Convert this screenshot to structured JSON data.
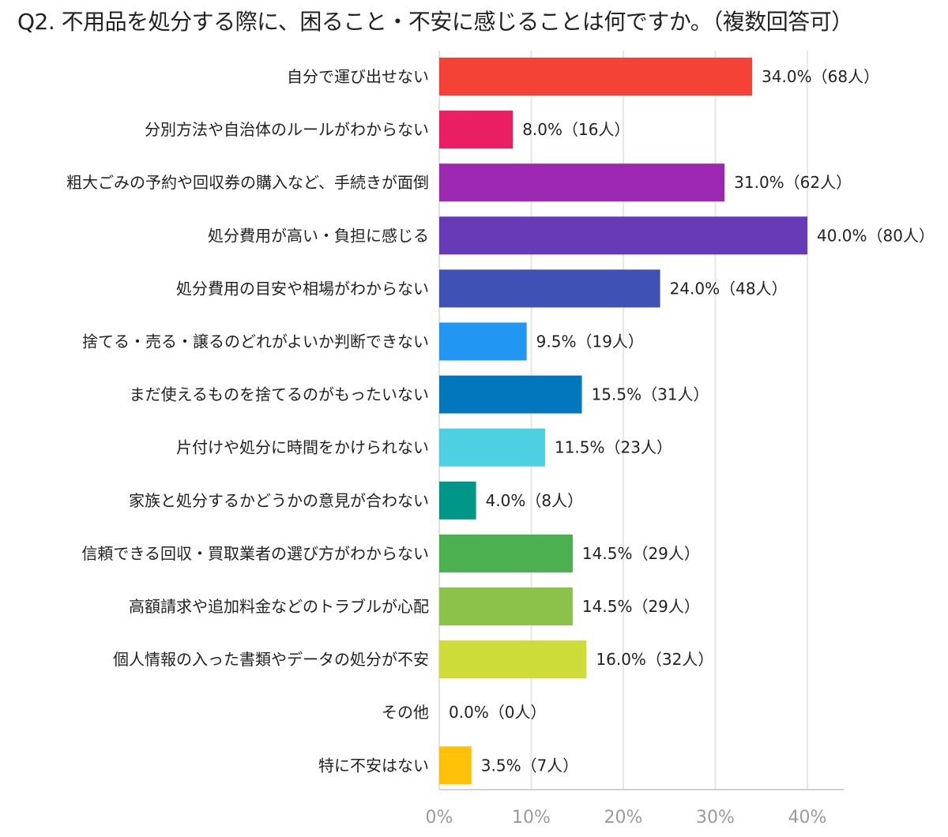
{
  "chart_data": {
    "type": "bar",
    "orientation": "horizontal",
    "title": "Q2. 不用品を処分する際に、困ること・不安に感じることは何ですか。（複数回答可）",
    "xlabel": "",
    "ylabel": "",
    "xlim": [
      0,
      44
    ],
    "ticks": [
      0,
      10,
      20,
      30,
      40
    ],
    "tick_labels": [
      "0%",
      "10%",
      "20%",
      "30%",
      "40%"
    ],
    "grid": true,
    "legend": "none",
    "categories": [
      "自分で運び出せない",
      "分別方法や自治体のルールがわからない",
      "粗大ごみの予約や回収券の購入など、手続きが面倒",
      "処分費用が高い・負担に感じる",
      "処分費用の目安や相場がわからない",
      "捨てる・売る・譲るのどれがよいか判断できない",
      "まだ使えるものを捨てるのがもったいない",
      "片付けや処分に時間をかけられない",
      "家族と処分するかどうかの意見が合わない",
      "信頼できる回収・買取業者の選び方がわからない",
      "高額請求や追加料金などのトラブルが心配",
      "個人情報の入った書類やデータの処分が不安",
      "その他",
      "特に不安はない"
    ],
    "values": [
      34.0,
      8.0,
      31.0,
      40.0,
      24.0,
      9.5,
      15.5,
      11.5,
      4.0,
      14.5,
      14.5,
      16.0,
      0.0,
      3.5
    ],
    "data_labels": [
      "34.0%（68人）",
      "8.0%（16人）",
      "31.0%（62人）",
      "40.0%（80人）",
      "24.0%（48人）",
      "9.5%（19人）",
      "15.5%（31人）",
      "11.5%（23人）",
      "4.0%（8人）",
      "14.5%（29人）",
      "14.5%（29人）",
      "16.0%（32人）",
      "0.0%（0人）",
      "3.5%（7人）"
    ],
    "colors": [
      "#f44336",
      "#e91e63",
      "#9c27b0",
      "#673ab7",
      "#3f51b5",
      "#2196f3",
      "#0277bd",
      "#4dd0e1",
      "#009688",
      "#4caf50",
      "#8bc34a",
      "#cddc39",
      "#cccccc",
      "#ffc107"
    ]
  }
}
